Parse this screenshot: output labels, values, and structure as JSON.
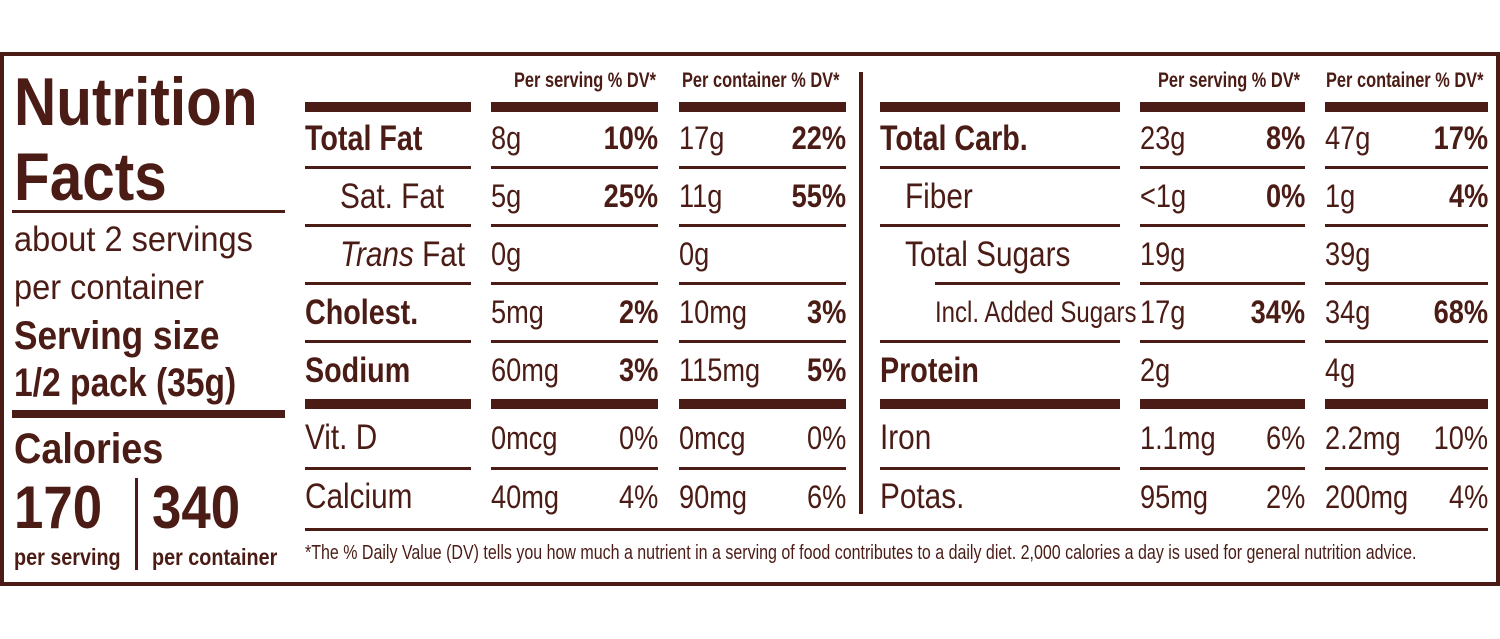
{
  "title_line1": "Nutrition",
  "title_line2": "Facts",
  "servings_line1": "about 2 servings",
  "servings_line2": "per container",
  "serving_size_label": "Serving size",
  "serving_size_value": "1/2 pack (35g)",
  "calories_label": "Calories",
  "calories_per_serving": "170",
  "calories_per_container": "340",
  "per_serving_label": "per serving",
  "per_container_label": "per container",
  "headers": {
    "per_serving_dv": "Per serving % DV*",
    "per_container_dv": "Per container % DV*"
  },
  "left_rows": [
    {
      "name": "Total Fat",
      "bold": true,
      "s_amt": "8g",
      "s_dv": "10%",
      "c_amt": "17g",
      "c_dv": "22%"
    },
    {
      "name": "Sat. Fat",
      "bold": false,
      "s_amt": "5g",
      "s_dv": "25%",
      "c_amt": "11g",
      "c_dv": "55%"
    },
    {
      "name_italic": "Trans",
      "name_rest": " Fat",
      "bold": false,
      "s_amt": "0g",
      "s_dv": "",
      "c_amt": "0g",
      "c_dv": ""
    },
    {
      "name": "Cholest.",
      "bold": true,
      "s_amt": "5mg",
      "s_dv": "2%",
      "c_amt": "10mg",
      "c_dv": "3%"
    },
    {
      "name": "Sodium",
      "bold": true,
      "s_amt": "60mg",
      "s_dv": "3%",
      "c_amt": "115mg",
      "c_dv": "5%"
    },
    {
      "name": "Vit. D",
      "bold": false,
      "s_amt": "0mcg",
      "s_dv": "0%",
      "c_amt": "0mcg",
      "c_dv": "0%"
    },
    {
      "name": "Calcium",
      "bold": false,
      "s_amt": "40mg",
      "s_dv": "4%",
      "c_amt": "90mg",
      "c_dv": "6%"
    }
  ],
  "right_rows": [
    {
      "name": "Total Carb.",
      "bold": true,
      "s_amt": "23g",
      "s_dv": "8%",
      "c_amt": "47g",
      "c_dv": "17%"
    },
    {
      "name": "Fiber",
      "bold": false,
      "s_amt": "<1g",
      "s_dv": "0%",
      "c_amt": "1g",
      "c_dv": "4%"
    },
    {
      "name": "Total Sugars",
      "bold": false,
      "s_amt": "19g",
      "s_dv": "",
      "c_amt": "39g",
      "c_dv": ""
    },
    {
      "name": "Incl. Added Sugars",
      "bold": false,
      "s_amt": "17g",
      "s_dv": "34%",
      "c_amt": "34g",
      "c_dv": "68%"
    },
    {
      "name": "Protein",
      "bold": true,
      "s_amt": "2g",
      "s_dv": "",
      "c_amt": "4g",
      "c_dv": ""
    },
    {
      "name": "Iron",
      "bold": false,
      "s_amt": "1.1mg",
      "s_dv": "6%",
      "c_amt": "2.2mg",
      "c_dv": "10%"
    },
    {
      "name": "Potas.",
      "bold": false,
      "s_amt": "95mg",
      "s_dv": "2%",
      "c_amt": "200mg",
      "c_dv": "4%"
    }
  ],
  "footnote": "*The % Daily Value (DV) tells you how much a nutrient in a serving of food contributes to a daily diet. 2,000 calories a day is used for general nutrition advice.",
  "colors": {
    "ink": "#4a1c15",
    "background": "#ffffff"
  }
}
